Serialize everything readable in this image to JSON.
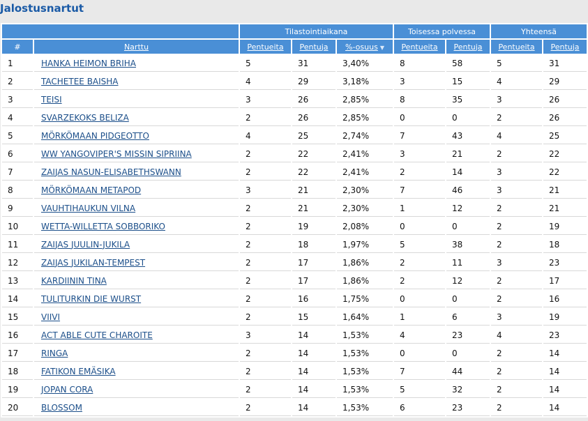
{
  "title": "Jalostusnartut",
  "groups": {
    "tilasto": "Tilastointiaikana",
    "toinen": "Toisessa polvessa",
    "yhteensa": "Yhteensä"
  },
  "columns": {
    "num": "#",
    "nartu": "Narttu",
    "pentueita": "Pentueita",
    "pentuja": "Pentuja",
    "osuus": "%-osuus"
  },
  "rows": [
    {
      "n": "1",
      "name": "HANKA HEIMON BRIHA",
      "p1": "5",
      "j1": "31",
      "pct": "3,40%",
      "p2": "8",
      "j2": "58",
      "p3": "5",
      "j3": "31"
    },
    {
      "n": "2",
      "name": "TACHETEE BAISHA",
      "p1": "4",
      "j1": "29",
      "pct": "3,18%",
      "p2": "3",
      "j2": "15",
      "p3": "4",
      "j3": "29"
    },
    {
      "n": "3",
      "name": "TEISI",
      "p1": "3",
      "j1": "26",
      "pct": "2,85%",
      "p2": "8",
      "j2": "35",
      "p3": "3",
      "j3": "26"
    },
    {
      "n": "4",
      "name": "SVARZEKOKS BELIZA",
      "p1": "2",
      "j1": "26",
      "pct": "2,85%",
      "p2": "0",
      "j2": "0",
      "p3": "2",
      "j3": "26"
    },
    {
      "n": "5",
      "name": "MÖRKÖMAAN PIDGEOTTO",
      "p1": "4",
      "j1": "25",
      "pct": "2,74%",
      "p2": "7",
      "j2": "43",
      "p3": "4",
      "j3": "25"
    },
    {
      "n": "6",
      "name": "WW YANGOVIPER'S MISSIN SIPRIINA",
      "p1": "2",
      "j1": "22",
      "pct": "2,41%",
      "p2": "3",
      "j2": "21",
      "p3": "2",
      "j3": "22"
    },
    {
      "n": "7",
      "name": "ZAIJAS NASUN-ELISABETHSWANN",
      "p1": "2",
      "j1": "22",
      "pct": "2,41%",
      "p2": "2",
      "j2": "14",
      "p3": "3",
      "j3": "22"
    },
    {
      "n": "8",
      "name": "MÖRKÖMAAN METAPOD",
      "p1": "3",
      "j1": "21",
      "pct": "2,30%",
      "p2": "7",
      "j2": "46",
      "p3": "3",
      "j3": "21"
    },
    {
      "n": "9",
      "name": "VAUHTIHAUKUN VILNA",
      "p1": "2",
      "j1": "21",
      "pct": "2,30%",
      "p2": "1",
      "j2": "12",
      "p3": "2",
      "j3": "21"
    },
    {
      "n": "10",
      "name": "WETTA-WILLETTA SOBBORIKO",
      "p1": "2",
      "j1": "19",
      "pct": "2,08%",
      "p2": "0",
      "j2": "0",
      "p3": "2",
      "j3": "19"
    },
    {
      "n": "11",
      "name": "ZAIJAS JUULIN-JUKILA",
      "p1": "2",
      "j1": "18",
      "pct": "1,97%",
      "p2": "5",
      "j2": "38",
      "p3": "2",
      "j3": "18"
    },
    {
      "n": "12",
      "name": "ZAIJAS JUKILAN-TEMPEST",
      "p1": "2",
      "j1": "17",
      "pct": "1,86%",
      "p2": "2",
      "j2": "11",
      "p3": "3",
      "j3": "23"
    },
    {
      "n": "13",
      "name": "KARDIININ TINA",
      "p1": "2",
      "j1": "17",
      "pct": "1,86%",
      "p2": "2",
      "j2": "12",
      "p3": "2",
      "j3": "17"
    },
    {
      "n": "14",
      "name": "TULITURKIN DIE WURST",
      "p1": "2",
      "j1": "16",
      "pct": "1,75%",
      "p2": "0",
      "j2": "0",
      "p3": "2",
      "j3": "16"
    },
    {
      "n": "15",
      "name": "VIIVI",
      "p1": "2",
      "j1": "15",
      "pct": "1,64%",
      "p2": "1",
      "j2": "6",
      "p3": "3",
      "j3": "19"
    },
    {
      "n": "16",
      "name": "ACT ABLE CUTE CHAROITE",
      "p1": "3",
      "j1": "14",
      "pct": "1,53%",
      "p2": "4",
      "j2": "23",
      "p3": "4",
      "j3": "23"
    },
    {
      "n": "17",
      "name": "RINGA",
      "p1": "2",
      "j1": "14",
      "pct": "1,53%",
      "p2": "0",
      "j2": "0",
      "p3": "2",
      "j3": "14"
    },
    {
      "n": "18",
      "name": "FATIKON EMÄSIKA",
      "p1": "2",
      "j1": "14",
      "pct": "1,53%",
      "p2": "7",
      "j2": "44",
      "p3": "2",
      "j3": "14"
    },
    {
      "n": "19",
      "name": "JOPAN CORA",
      "p1": "2",
      "j1": "14",
      "pct": "1,53%",
      "p2": "5",
      "j2": "32",
      "p3": "2",
      "j3": "14"
    },
    {
      "n": "20",
      "name": "BLOSSOM",
      "p1": "2",
      "j1": "14",
      "pct": "1,53%",
      "p2": "6",
      "j2": "23",
      "p3": "2",
      "j3": "14"
    }
  ]
}
